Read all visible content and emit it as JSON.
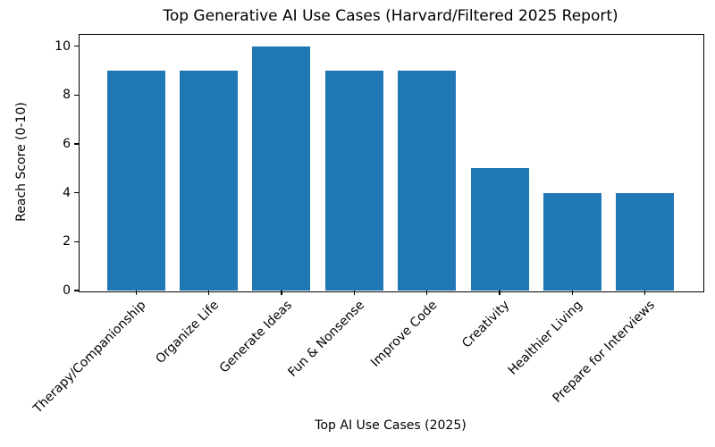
{
  "chart_data": {
    "type": "bar",
    "title": "Top Generative AI Use Cases (Harvard/Filtered 2025 Report)",
    "xlabel": "Top AI Use Cases (2025)",
    "ylabel": "Reach Score (0-10)",
    "categories": [
      "Therapy/Companionship",
      "Organize Life",
      "Generate Ideas",
      "Fun & Nonsense",
      "Improve Code",
      "Creativity",
      "Healthier Living",
      "Prepare for Interviews"
    ],
    "values": [
      9,
      9,
      10,
      9,
      9,
      5,
      4,
      4
    ],
    "y_ticks": [
      0,
      2,
      4,
      6,
      8,
      10
    ],
    "ylim": [
      0,
      10.5
    ],
    "bar_color": "#1f77b4",
    "grid": "off",
    "legend": "none",
    "x_tick_rotation_deg": 45
  }
}
